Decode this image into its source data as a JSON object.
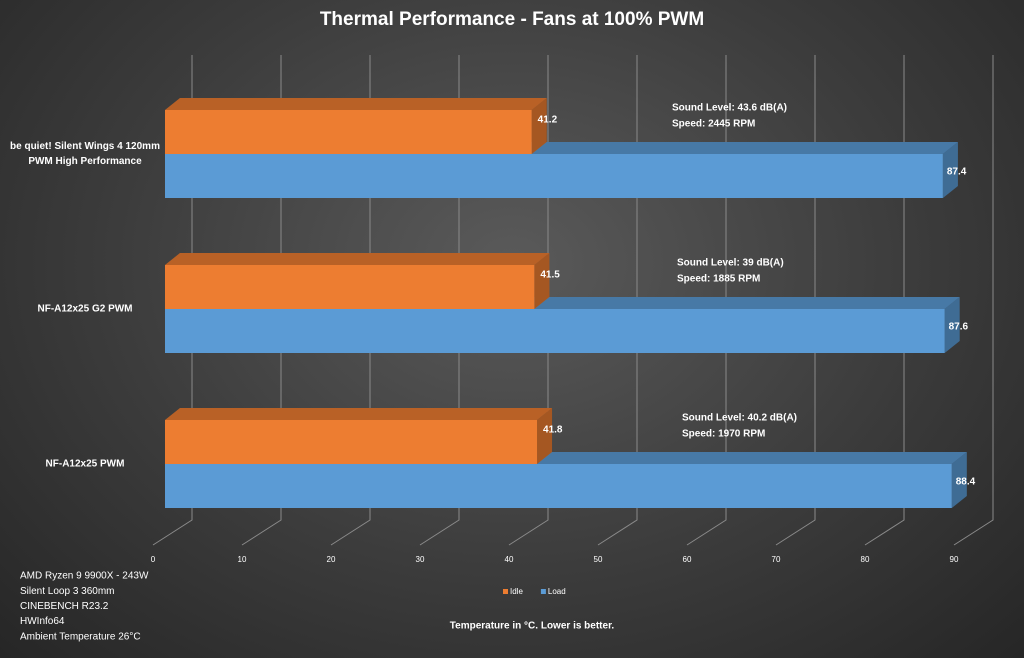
{
  "chart_data": {
    "type": "bar",
    "orientation": "horizontal",
    "style": "3d",
    "title": "Thermal Performance - Fans at 100% PWM",
    "categories": [
      "be quiet! Silent Wings 4 120mm PWM High Performance",
      "NF-A12x25 G2 PWM",
      "NF-A12x25 PWM"
    ],
    "series": [
      {
        "name": "Idle",
        "color": "#ed7d31",
        "values": [
          41.2,
          41.5,
          41.8
        ]
      },
      {
        "name": "Load",
        "color": "#5b9bd5",
        "values": [
          87.4,
          87.6,
          88.4
        ]
      }
    ],
    "annotations": [
      [
        "Sound Level: 43.6 dB(A)",
        "Speed: 2445 RPM"
      ],
      [
        "Sound Level: 39 dB(A)",
        "Speed: 1885 RPM"
      ],
      [
        "Sound Level: 40.2 dB(A)",
        "Speed: 1970 RPM"
      ]
    ],
    "xlabel": "Temperature in °C. Lower is better.",
    "xlim": [
      0,
      90
    ],
    "xticks": [
      0,
      10,
      20,
      30,
      40,
      50,
      60,
      70,
      80,
      90
    ],
    "grid": true,
    "legend": "bottom",
    "notes": [
      "AMD Ryzen 9 9900X - 243W",
      "Silent Loop 3 360mm",
      "CINEBENCH R23.2",
      "HWInfo64",
      "Ambient Temperature 26°C"
    ]
  }
}
